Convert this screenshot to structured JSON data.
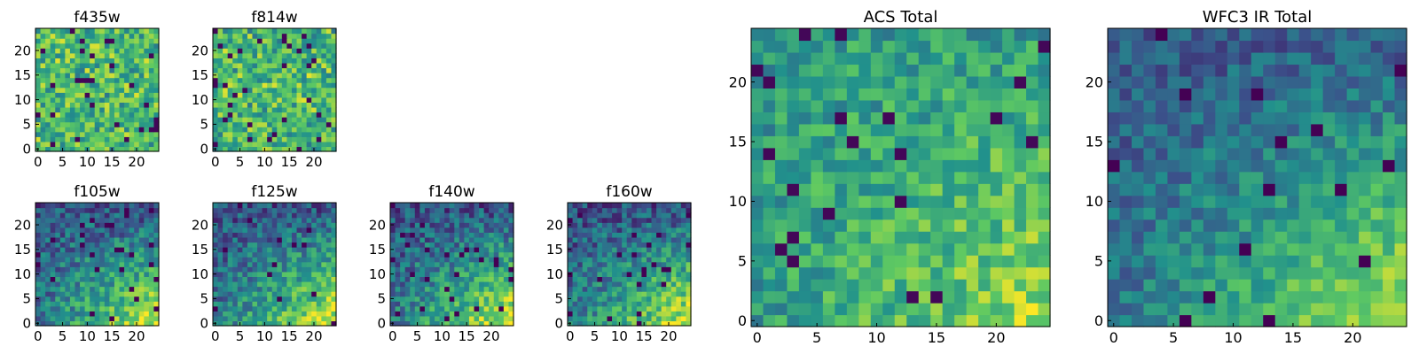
{
  "colormap": [
    "#440154",
    "#3b528b",
    "#21918c",
    "#5ec962",
    "#fde725"
  ],
  "chart_data": [
    {
      "type": "heatmap",
      "title": "f435w",
      "size": 25,
      "pattern": "uniform",
      "seed": 11,
      "ticks": [
        0,
        5,
        10,
        15,
        20
      ],
      "tick_labels": [
        "0",
        "5",
        "10",
        "15",
        "20"
      ]
    },
    {
      "type": "heatmap",
      "title": "f814w",
      "size": 25,
      "pattern": "uniform",
      "seed": 23,
      "ticks": [
        0,
        5,
        10,
        15,
        20
      ],
      "tick_labels": [
        "0",
        "5",
        "10",
        "15",
        "20"
      ]
    },
    {
      "type": "heatmap",
      "title": "f105w",
      "size": 25,
      "pattern": "corner",
      "seed": 37,
      "ticks": [
        0,
        5,
        10,
        15,
        20
      ],
      "tick_labels": [
        "0",
        "5",
        "10",
        "15",
        "20"
      ]
    },
    {
      "type": "heatmap",
      "title": "f125w",
      "size": 25,
      "pattern": "corner",
      "seed": 41,
      "ticks": [
        0,
        5,
        10,
        15,
        20
      ],
      "tick_labels": [
        "0",
        "5",
        "10",
        "15",
        "20"
      ]
    },
    {
      "type": "heatmap",
      "title": "f140w",
      "size": 25,
      "pattern": "corner",
      "seed": 53,
      "ticks": [
        0,
        5,
        10,
        15,
        20
      ],
      "tick_labels": [
        "0",
        "5",
        "10",
        "15",
        "20"
      ]
    },
    {
      "type": "heatmap",
      "title": "f160w",
      "size": 25,
      "pattern": "corner",
      "seed": 67,
      "ticks": [
        0,
        5,
        10,
        15,
        20
      ],
      "tick_labels": [
        "0",
        "5",
        "10",
        "15",
        "20"
      ]
    },
    {
      "type": "heatmap",
      "title": "ACS Total",
      "size": 25,
      "pattern": "acs",
      "seed": 79,
      "ticks": [
        0,
        5,
        10,
        15,
        20
      ],
      "tick_labels": [
        "0",
        "5",
        "10",
        "15",
        "20"
      ]
    },
    {
      "type": "heatmap",
      "title": "WFC3 IR Total",
      "size": 25,
      "pattern": "ir",
      "seed": 97,
      "ticks": [
        0,
        5,
        10,
        15,
        20
      ],
      "tick_labels": [
        "0",
        "5",
        "10",
        "15",
        "20"
      ]
    }
  ]
}
